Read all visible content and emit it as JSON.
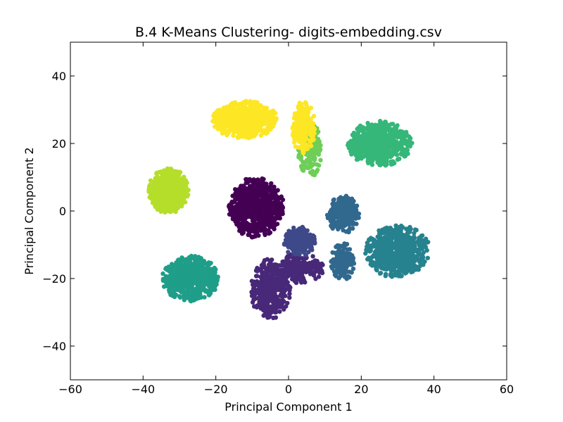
{
  "chart_data": {
    "type": "scatter",
    "title": "B.4 K-Means Clustering- digits-embedding.csv",
    "xlabel": "Principal Component 1",
    "ylabel": "Principal Component 2",
    "xlim": [
      -60,
      60
    ],
    "ylim": [
      -50,
      50
    ],
    "xticks": [
      -60,
      -40,
      -20,
      0,
      20,
      40,
      60
    ],
    "yticks": [
      -40,
      -20,
      0,
      20,
      40
    ],
    "xtick_labels": [
      "−60",
      "−40",
      "−20",
      "0",
      "20",
      "40",
      "60"
    ],
    "ytick_labels": [
      "−40",
      "−20",
      "0",
      "20",
      "40"
    ],
    "grid": false,
    "legend": "none",
    "colormap": "viridis",
    "clusters": [
      {
        "id": 0,
        "color": "#440154",
        "center": [
          -9,
          1
        ],
        "spread": [
          7,
          8
        ],
        "n": 700
      },
      {
        "id": 1,
        "color": "#482878",
        "center": [
          -5,
          -23
        ],
        "spread": [
          5,
          8
        ],
        "n": 450
      },
      {
        "id": 2,
        "color": "#482878",
        "center": [
          3,
          -17
        ],
        "spread": [
          6,
          4
        ],
        "n": 200
      },
      {
        "id": 3,
        "color": "#3e4989",
        "center": [
          3,
          -9
        ],
        "spread": [
          4,
          4
        ],
        "n": 250
      },
      {
        "id": 4,
        "color": "#31688e",
        "center": [
          15,
          -15
        ],
        "spread": [
          3,
          5
        ],
        "n": 150
      },
      {
        "id": 5,
        "color": "#31688e",
        "center": [
          15,
          -1
        ],
        "spread": [
          4,
          5
        ],
        "n": 250
      },
      {
        "id": 6,
        "color": "#26828e",
        "center": [
          30,
          -12
        ],
        "spread": [
          8,
          7
        ],
        "n": 650
      },
      {
        "id": 7,
        "color": "#1f9e89",
        "center": [
          -27,
          -20
        ],
        "spread": [
          7,
          6
        ],
        "n": 650
      },
      {
        "id": 8,
        "color": "#35b779",
        "center": [
          25,
          20
        ],
        "spread": [
          8,
          6
        ],
        "n": 650
      },
      {
        "id": 9,
        "color": "#6ece58",
        "center": [
          6,
          18
        ],
        "spread": [
          3,
          7
        ],
        "n": 180
      },
      {
        "id": 10,
        "color": "#b5de2b",
        "center": [
          -33,
          6
        ],
        "spread": [
          5,
          6
        ],
        "n": 600
      },
      {
        "id": 11,
        "color": "#fde725",
        "center": [
          -12,
          27
        ],
        "spread": [
          8,
          5
        ],
        "n": 650
      },
      {
        "id": 12,
        "color": "#fde725",
        "center": [
          4,
          25
        ],
        "spread": [
          3,
          7
        ],
        "n": 200
      }
    ]
  }
}
